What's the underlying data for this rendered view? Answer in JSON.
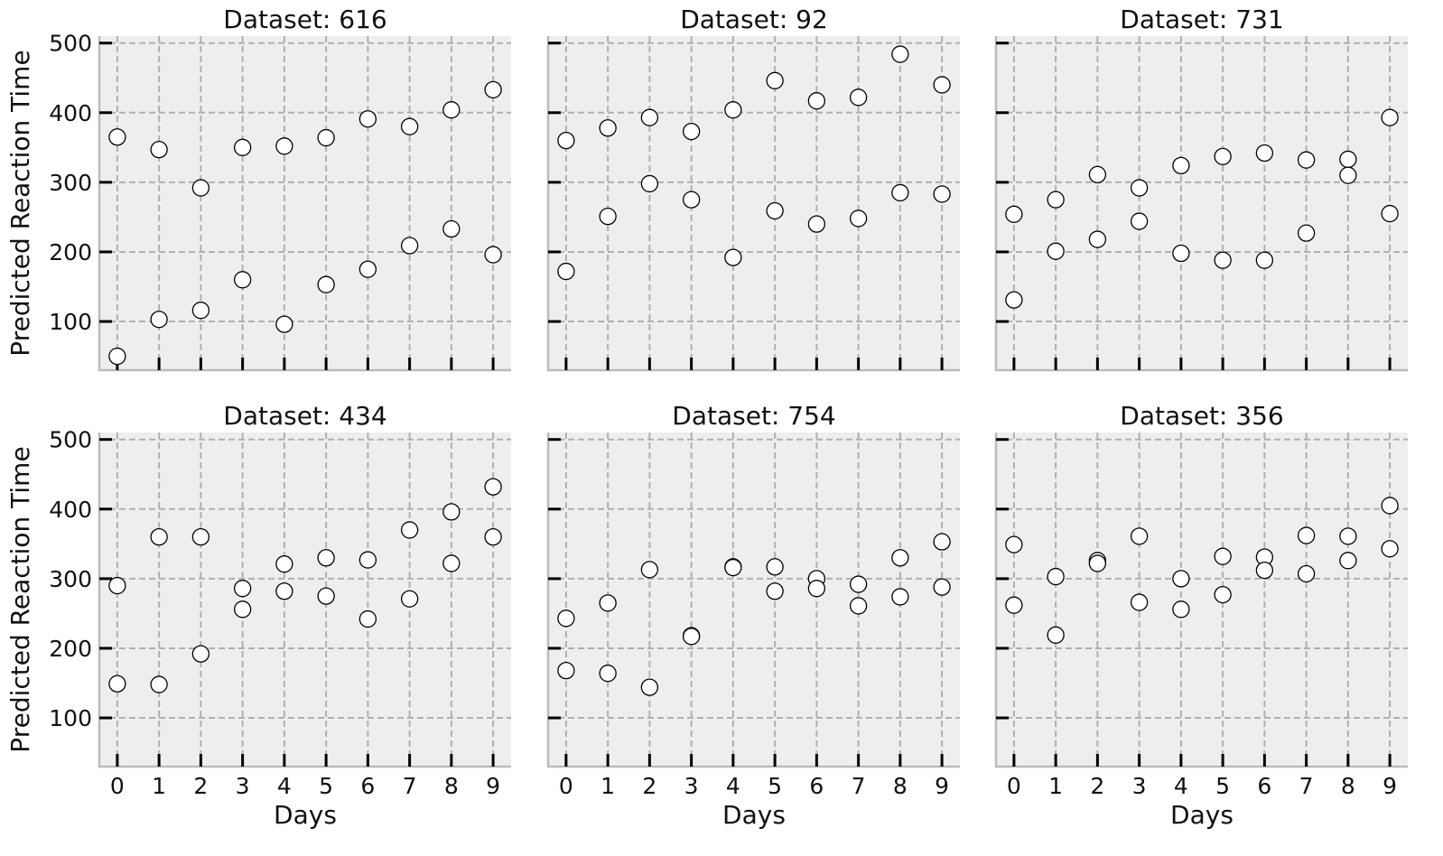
{
  "chart_data": {
    "type": "scatter",
    "layout": "2x3 grid, shared axes",
    "xlabel": "Days",
    "ylabel": "Predicted Reaction Time",
    "xticks": [
      0,
      1,
      2,
      3,
      4,
      5,
      6,
      7,
      8,
      9
    ],
    "yticks": [
      100,
      200,
      300,
      400,
      500
    ],
    "xlim": [
      -0.43,
      9.43
    ],
    "ylim": [
      30,
      510
    ],
    "grid": true,
    "colors": {
      "background": "#eeeeee",
      "grid": "#b0b0b0",
      "marker_fill": "#ffffff",
      "marker_edge": "#000000",
      "spine": "#bbbbbb"
    },
    "panels": [
      {
        "title": "Dataset: 616",
        "points": [
          [
            0,
            365
          ],
          [
            0,
            50
          ],
          [
            1,
            347
          ],
          [
            1,
            103
          ],
          [
            2,
            292
          ],
          [
            2,
            116
          ],
          [
            3,
            350
          ],
          [
            3,
            160
          ],
          [
            4,
            352
          ],
          [
            4,
            96
          ],
          [
            5,
            364
          ],
          [
            5,
            153
          ],
          [
            6,
            391
          ],
          [
            6,
            175
          ],
          [
            7,
            380
          ],
          [
            7,
            209
          ],
          [
            8,
            404
          ],
          [
            8,
            233
          ],
          [
            9,
            433
          ],
          [
            9,
            196
          ]
        ]
      },
      {
        "title": "Dataset: 92",
        "points": [
          [
            0,
            360
          ],
          [
            0,
            172
          ],
          [
            1,
            378
          ],
          [
            1,
            251
          ],
          [
            2,
            393
          ],
          [
            2,
            298
          ],
          [
            3,
            373
          ],
          [
            3,
            275
          ],
          [
            4,
            404
          ],
          [
            4,
            192
          ],
          [
            5,
            446
          ],
          [
            5,
            259
          ],
          [
            6,
            417
          ],
          [
            6,
            240
          ],
          [
            7,
            422
          ],
          [
            7,
            248
          ],
          [
            8,
            484
          ],
          [
            8,
            285
          ],
          [
            9,
            440
          ],
          [
            9,
            283
          ]
        ]
      },
      {
        "title": "Dataset: 731",
        "points": [
          [
            0,
            254
          ],
          [
            0,
            131
          ],
          [
            1,
            275
          ],
          [
            1,
            201
          ],
          [
            2,
            311
          ],
          [
            2,
            218
          ],
          [
            3,
            292
          ],
          [
            3,
            244
          ],
          [
            4,
            324
          ],
          [
            4,
            198
          ],
          [
            5,
            337
          ],
          [
            5,
            188
          ],
          [
            6,
            342
          ],
          [
            6,
            188
          ],
          [
            7,
            332
          ],
          [
            7,
            227
          ],
          [
            8,
            333
          ],
          [
            8,
            310
          ],
          [
            9,
            393
          ],
          [
            9,
            255
          ]
        ]
      },
      {
        "title": "Dataset: 434",
        "points": [
          [
            0,
            290
          ],
          [
            0,
            149
          ],
          [
            1,
            360
          ],
          [
            1,
            148
          ],
          [
            2,
            360
          ],
          [
            2,
            192
          ],
          [
            3,
            286
          ],
          [
            3,
            256
          ],
          [
            4,
            321
          ],
          [
            4,
            282
          ],
          [
            5,
            330
          ],
          [
            5,
            275
          ],
          [
            6,
            327
          ],
          [
            6,
            242
          ],
          [
            7,
            370
          ],
          [
            7,
            271
          ],
          [
            8,
            396
          ],
          [
            8,
            322
          ],
          [
            9,
            432
          ],
          [
            9,
            360
          ]
        ]
      },
      {
        "title": "Dataset: 754",
        "points": [
          [
            0,
            243
          ],
          [
            0,
            168
          ],
          [
            1,
            265
          ],
          [
            1,
            164
          ],
          [
            2,
            313
          ],
          [
            2,
            144
          ],
          [
            3,
            218
          ],
          [
            3,
            217
          ],
          [
            4,
            317
          ],
          [
            4,
            316
          ],
          [
            5,
            317
          ],
          [
            5,
            282
          ],
          [
            6,
            300
          ],
          [
            6,
            286
          ],
          [
            7,
            292
          ],
          [
            7,
            261
          ],
          [
            8,
            330
          ],
          [
            8,
            274
          ],
          [
            9,
            353
          ],
          [
            9,
            288
          ]
        ]
      },
      {
        "title": "Dataset: 356",
        "points": [
          [
            0,
            349
          ],
          [
            0,
            262
          ],
          [
            1,
            303
          ],
          [
            1,
            219
          ],
          [
            2,
            326
          ],
          [
            2,
            322
          ],
          [
            3,
            361
          ],
          [
            3,
            266
          ],
          [
            4,
            300
          ],
          [
            4,
            256
          ],
          [
            5,
            332
          ],
          [
            5,
            277
          ],
          [
            6,
            331
          ],
          [
            6,
            312
          ],
          [
            7,
            362
          ],
          [
            7,
            307
          ],
          [
            8,
            361
          ],
          [
            8,
            326
          ],
          [
            9,
            405
          ],
          [
            9,
            343
          ]
        ]
      }
    ]
  }
}
